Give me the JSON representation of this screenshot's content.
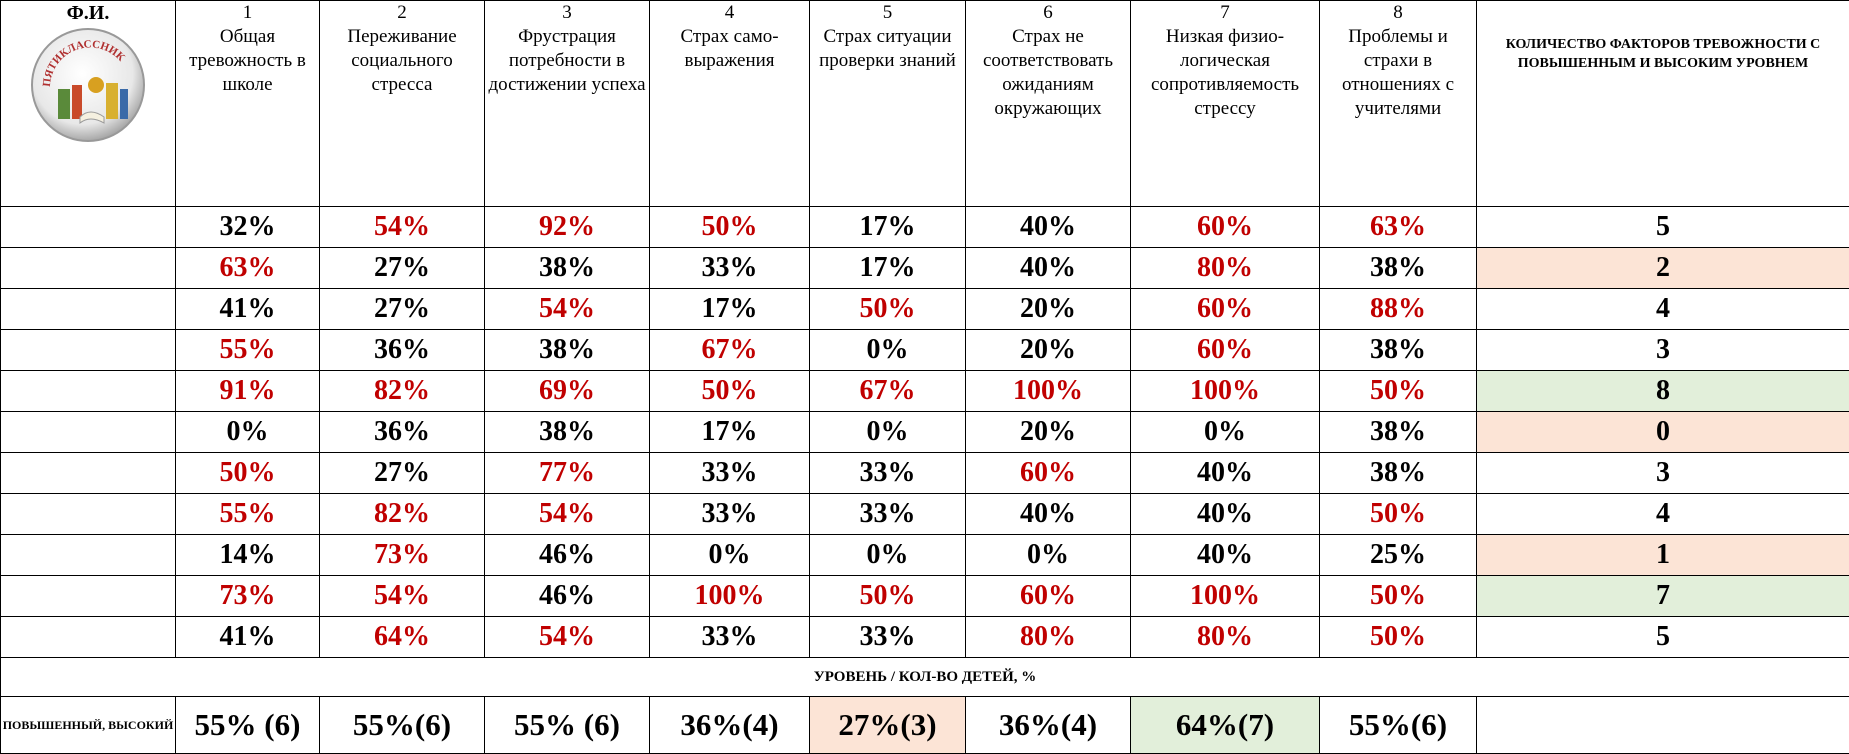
{
  "header": {
    "name_label": "Ф.И.",
    "logo_text": "ПЯТИКЛАССНИК",
    "columns": [
      {
        "number": "1",
        "title": "Общая тревожность в школе"
      },
      {
        "number": "2",
        "title": "Переживание социального стресса"
      },
      {
        "number": "3",
        "title": "Фрустрация потребности в достижении успеха"
      },
      {
        "number": "4",
        "title": "Страх само-выражения"
      },
      {
        "number": "5",
        "title": "Страх ситуации проверки знаний"
      },
      {
        "number": "6",
        "title": "Страх не соответствовать ожиданиям окружающих"
      },
      {
        "number": "7",
        "title": "Низкая физио-логическая сопротивляемость стрессу"
      },
      {
        "number": "8",
        "title": "Проблемы и страхи в отношениях с учителями"
      }
    ],
    "count_label": "КОЛИЧЕСТВО ФАКТОРОВ ТРЕВОЖНОСТИ С ПОВЫШЕННЫМ И ВЫСОКИМ УРОВНЕМ"
  },
  "high_color": "#c00000",
  "rows": [
    {
      "cells": [
        {
          "text": "32%"
        },
        {
          "text": "54%",
          "high": true
        },
        {
          "text": "92%",
          "high": true
        },
        {
          "text": "50%",
          "high": true
        },
        {
          "text": "17%"
        },
        {
          "text": "40%"
        },
        {
          "text": "60%",
          "high": true
        },
        {
          "text": "63%",
          "high": true
        }
      ],
      "count": {
        "text": "5"
      }
    },
    {
      "cells": [
        {
          "text": "63%",
          "high": true
        },
        {
          "text": "27%"
        },
        {
          "text": "38%"
        },
        {
          "text": "33%"
        },
        {
          "text": "17%"
        },
        {
          "text": "40%"
        },
        {
          "text": "80%",
          "high": true
        },
        {
          "text": "38%"
        }
      ],
      "count": {
        "text": "2",
        "fill": "#fce4d6"
      }
    },
    {
      "cells": [
        {
          "text": "41%"
        },
        {
          "text": "27%"
        },
        {
          "text": "54%",
          "high": true
        },
        {
          "text": "17%"
        },
        {
          "text": "50%",
          "high": true
        },
        {
          "text": "20%"
        },
        {
          "text": "60%",
          "high": true
        },
        {
          "text": "88%",
          "high": true
        }
      ],
      "count": {
        "text": "4"
      }
    },
    {
      "cells": [
        {
          "text": "55%",
          "high": true
        },
        {
          "text": "36%"
        },
        {
          "text": "38%"
        },
        {
          "text": "67%",
          "high": true
        },
        {
          "text": "0%"
        },
        {
          "text": "20%"
        },
        {
          "text": "60%",
          "high": true
        },
        {
          "text": "38%"
        }
      ],
      "count": {
        "text": "3"
      }
    },
    {
      "cells": [
        {
          "text": "91%",
          "high": true
        },
        {
          "text": "82%",
          "high": true
        },
        {
          "text": "69%",
          "high": true
        },
        {
          "text": "50%",
          "high": true
        },
        {
          "text": "67%",
          "high": true
        },
        {
          "text": "100%",
          "high": true
        },
        {
          "text": "100%",
          "high": true
        },
        {
          "text": "50%",
          "high": true
        }
      ],
      "count": {
        "text": "8",
        "fill": "#e2efda"
      }
    },
    {
      "cells": [
        {
          "text": "0%"
        },
        {
          "text": "36%"
        },
        {
          "text": "38%"
        },
        {
          "text": "17%"
        },
        {
          "text": "0%"
        },
        {
          "text": "20%"
        },
        {
          "text": "0%"
        },
        {
          "text": "38%"
        }
      ],
      "count": {
        "text": "0",
        "fill": "#fce4d6"
      }
    },
    {
      "cells": [
        {
          "text": "50%",
          "high": true
        },
        {
          "text": "27%"
        },
        {
          "text": "77%",
          "high": true
        },
        {
          "text": "33%"
        },
        {
          "text": "33%"
        },
        {
          "text": "60%",
          "high": true
        },
        {
          "text": "40%"
        },
        {
          "text": "38%"
        }
      ],
      "count": {
        "text": "3"
      }
    },
    {
      "cells": [
        {
          "text": "55%",
          "high": true
        },
        {
          "text": "82%",
          "high": true
        },
        {
          "text": "54%",
          "high": true
        },
        {
          "text": "33%"
        },
        {
          "text": "33%"
        },
        {
          "text": "40%"
        },
        {
          "text": "40%"
        },
        {
          "text": "50%",
          "high": true
        }
      ],
      "count": {
        "text": "4"
      }
    },
    {
      "cells": [
        {
          "text": "14%"
        },
        {
          "text": "73%",
          "high": true
        },
        {
          "text": "46%"
        },
        {
          "text": "0%"
        },
        {
          "text": "0%"
        },
        {
          "text": "0%"
        },
        {
          "text": "40%"
        },
        {
          "text": "25%"
        }
      ],
      "count": {
        "text": "1",
        "fill": "#fce4d6"
      }
    },
    {
      "cells": [
        {
          "text": "73%",
          "high": true
        },
        {
          "text": "54%",
          "high": true
        },
        {
          "text": "46%"
        },
        {
          "text": "100%",
          "high": true
        },
        {
          "text": "50%",
          "high": true
        },
        {
          "text": "60%",
          "high": true
        },
        {
          "text": "100%",
          "high": true
        },
        {
          "text": "50%",
          "high": true
        }
      ],
      "count": {
        "text": "7",
        "fill": "#e2efda"
      }
    },
    {
      "cells": [
        {
          "text": "41%"
        },
        {
          "text": "64%",
          "high": true
        },
        {
          "text": "54%",
          "high": true
        },
        {
          "text": "33%"
        },
        {
          "text": "33%"
        },
        {
          "text": "80%",
          "high": true
        },
        {
          "text": "80%",
          "high": true
        },
        {
          "text": "50%",
          "high": true
        }
      ],
      "count": {
        "text": "5"
      }
    }
  ],
  "summary": {
    "section_title": "УРОВЕНЬ / КОЛ-ВО ДЕТЕЙ, %",
    "label": "ПОВЫШЕННЫЙ, ВЫСОКИЙ",
    "cells": [
      {
        "text": "55% (6)"
      },
      {
        "text": "55%(6)"
      },
      {
        "text": "55% (6)"
      },
      {
        "text": "36%(4)"
      },
      {
        "text": "27%(3)",
        "fill": "#fce4d6"
      },
      {
        "text": "36%(4)"
      },
      {
        "text": "64%(7)",
        "fill": "#e2efda"
      },
      {
        "text": "55%(6)"
      }
    ]
  }
}
